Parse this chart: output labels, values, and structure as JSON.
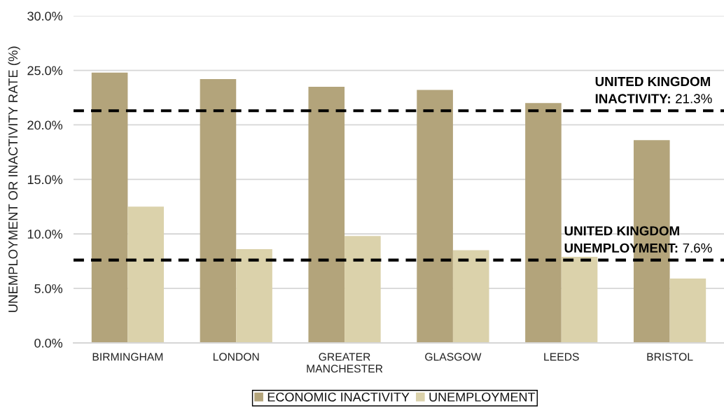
{
  "chart_data": {
    "type": "bar",
    "ylabel": "UNEMPLOYMENT OR INACTIVITY RATE (%)",
    "categories": [
      "BIRMINGHAM",
      "LONDON",
      "GREATER\nMANCHESTER",
      "GLASGOW",
      "LEEDS",
      "BRISTOL"
    ],
    "series": [
      {
        "name": "ECONOMIC INACTIVITY",
        "color": "#b3a47b",
        "values": [
          24.8,
          24.2,
          23.5,
          23.2,
          22.0,
          18.6
        ]
      },
      {
        "name": "UNEMPLOYMENT",
        "color": "#dbd2ab",
        "values": [
          12.5,
          8.6,
          9.8,
          8.5,
          7.9,
          5.9
        ]
      }
    ],
    "ylim": [
      0,
      30
    ],
    "yticks": [
      {
        "value": 0,
        "label": "0.0%"
      },
      {
        "value": 5,
        "label": "5.0%"
      },
      {
        "value": 10,
        "label": "10.0%"
      },
      {
        "value": 15,
        "label": "15.0%"
      },
      {
        "value": 20,
        "label": "20.0%"
      },
      {
        "value": 25,
        "label": "25.0%"
      },
      {
        "value": 30,
        "label": "30.0%"
      }
    ],
    "grid": "y",
    "legend": "bottom",
    "ref_lines": [
      {
        "axis": "y",
        "value": 21.3,
        "label": "UNITED KINGDOM\nINACTIVITY: 21.3%",
        "color": "#000000",
        "line_style": "dashed"
      },
      {
        "axis": "y",
        "value": 7.6,
        "label": "UNITED KINGDOM\nUNEMPLOYMENT: 7.6%",
        "color": "#000000",
        "line_style": "dashed"
      }
    ]
  }
}
